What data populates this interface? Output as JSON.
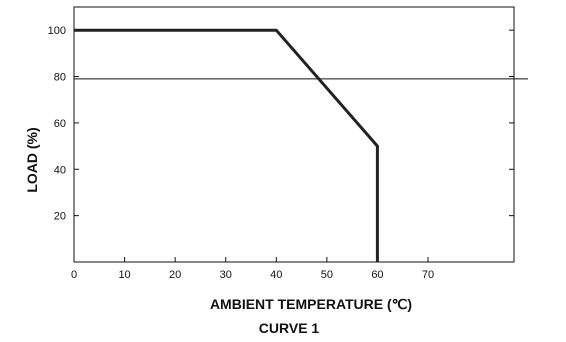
{
  "chart_data": {
    "type": "line",
    "xlabel": "AMBIENT TEMPERATURE (℃)",
    "ylabel": "LOAD (%)",
    "caption": "CURVE 1",
    "xlim": [
      0,
      87
    ],
    "ylim": [
      0,
      110
    ],
    "x_ticks": [
      0,
      10,
      20,
      30,
      40,
      50,
      60,
      70
    ],
    "y_ticks": [
      20,
      40,
      60,
      80,
      100
    ],
    "grid": false,
    "reference_line_y": 79,
    "series": [
      {
        "points": [
          [
            0,
            100
          ],
          [
            40,
            100
          ],
          [
            60,
            50
          ],
          [
            60,
            0
          ]
        ]
      }
    ]
  }
}
